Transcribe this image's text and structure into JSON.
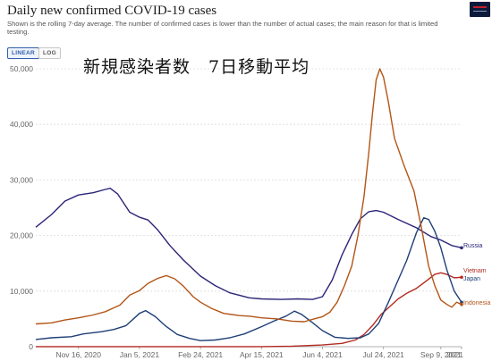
{
  "header": {
    "title": "Daily new confirmed COVID-19 cases",
    "subtitle": "Shown is the rolling 7-day average. The number of confirmed cases is lower than the number of actual cases; the main reason for that is limited testing."
  },
  "controls": {
    "linear_label": "LINEAR",
    "log_label": "LOG",
    "selected": "linear"
  },
  "overlay_text": "新規感染者数　7日移動平均",
  "colors": {
    "Russia": "#2b2477",
    "Vietnam": "#b22a21",
    "Japan": "#1f3f77",
    "Indonesia": "#b35516",
    "grid": "#dcdcdc",
    "axis": "#666666"
  },
  "chart_data": {
    "type": "line",
    "title": "Daily new confirmed COVID-19 cases",
    "xlabel": "",
    "ylabel": "",
    "ylim": [
      0,
      50000
    ],
    "yticks": [
      0,
      10000,
      20000,
      30000,
      40000,
      50000
    ],
    "ytick_labels": [
      "0",
      "10,000",
      "20,000",
      "30,000",
      "40,000",
      "50,000"
    ],
    "x_range": [
      "2020-10-12",
      "2021-09-26"
    ],
    "xticks": [
      "2020-11-16",
      "2021-01-05",
      "2021-02-24",
      "2021-04-15",
      "2021-06-04",
      "2021-07-24",
      "2021-09-09",
      "2021-09-26"
    ],
    "xtick_labels": [
      "Nov 16, 2020",
      "Jan 5, 2021",
      "Feb 24, 2021",
      "Apr 15, 2021",
      "Jun 4, 2021",
      "Jul 24, 2021",
      "Sep 9, 2021",
      "2021"
    ],
    "grid": true,
    "legend": "line-end labels, right",
    "series": [
      {
        "name": "Russia",
        "points": [
          [
            "2020-10-12",
            21500
          ],
          [
            "2020-10-25",
            23800
          ],
          [
            "2020-11-05",
            26200
          ],
          [
            "2020-11-16",
            27300
          ],
          [
            "2020-11-28",
            27700
          ],
          [
            "2020-12-08",
            28300
          ],
          [
            "2020-12-12",
            28500
          ],
          [
            "2020-12-18",
            27500
          ],
          [
            "2020-12-28",
            24200
          ],
          [
            "2021-01-05",
            23300
          ],
          [
            "2021-01-12",
            22800
          ],
          [
            "2021-01-20",
            21000
          ],
          [
            "2021-01-30",
            18200
          ],
          [
            "2021-02-10",
            15600
          ],
          [
            "2021-02-24",
            12700
          ],
          [
            "2021-03-08",
            11000
          ],
          [
            "2021-03-20",
            9700
          ],
          [
            "2021-04-05",
            8800
          ],
          [
            "2021-04-15",
            8600
          ],
          [
            "2021-05-01",
            8500
          ],
          [
            "2021-05-15",
            8600
          ],
          [
            "2021-05-27",
            8500
          ],
          [
            "2021-06-04",
            9000
          ],
          [
            "2021-06-12",
            12000
          ],
          [
            "2021-06-20",
            16500
          ],
          [
            "2021-06-28",
            20200
          ],
          [
            "2021-07-05",
            23000
          ],
          [
            "2021-07-12",
            24300
          ],
          [
            "2021-07-18",
            24500
          ],
          [
            "2021-07-24",
            24200
          ],
          [
            "2021-08-05",
            22900
          ],
          [
            "2021-08-20",
            21400
          ],
          [
            "2021-09-01",
            19800
          ],
          [
            "2021-09-09",
            19200
          ],
          [
            "2021-09-18",
            18200
          ],
          [
            "2021-09-26",
            17800
          ]
        ]
      },
      {
        "name": "Vietnam",
        "points": [
          [
            "2020-10-12",
            10
          ],
          [
            "2021-01-05",
            10
          ],
          [
            "2021-04-15",
            20
          ],
          [
            "2021-05-10",
            100
          ],
          [
            "2021-06-04",
            300
          ],
          [
            "2021-06-20",
            600
          ],
          [
            "2021-07-01",
            1200
          ],
          [
            "2021-07-08",
            2200
          ],
          [
            "2021-07-15",
            3800
          ],
          [
            "2021-07-22",
            5800
          ],
          [
            "2021-07-28",
            7000
          ],
          [
            "2021-08-05",
            8600
          ],
          [
            "2021-08-12",
            9600
          ],
          [
            "2021-08-20",
            10500
          ],
          [
            "2021-08-28",
            11800
          ],
          [
            "2021-09-04",
            13000
          ],
          [
            "2021-09-09",
            13300
          ],
          [
            "2021-09-14",
            13000
          ],
          [
            "2021-09-20",
            12400
          ],
          [
            "2021-09-26",
            12500
          ]
        ]
      },
      {
        "name": "Japan",
        "points": [
          [
            "2020-10-12",
            1300
          ],
          [
            "2020-10-25",
            1600
          ],
          [
            "2020-11-10",
            1800
          ],
          [
            "2020-11-20",
            2300
          ],
          [
            "2020-12-05",
            2700
          ],
          [
            "2020-12-15",
            3100
          ],
          [
            "2020-12-25",
            3800
          ],
          [
            "2021-01-01",
            5200
          ],
          [
            "2021-01-05",
            6000
          ],
          [
            "2021-01-10",
            6500
          ],
          [
            "2021-01-18",
            5400
          ],
          [
            "2021-01-26",
            3800
          ],
          [
            "2021-02-05",
            2200
          ],
          [
            "2021-02-15",
            1500
          ],
          [
            "2021-02-24",
            1100
          ],
          [
            "2021-03-08",
            1200
          ],
          [
            "2021-03-20",
            1600
          ],
          [
            "2021-04-01",
            2300
          ],
          [
            "2021-04-15",
            3600
          ],
          [
            "2021-04-25",
            4600
          ],
          [
            "2021-05-05",
            5500
          ],
          [
            "2021-05-12",
            6400
          ],
          [
            "2021-05-18",
            5800
          ],
          [
            "2021-05-27",
            4300
          ],
          [
            "2021-06-04",
            2900
          ],
          [
            "2021-06-14",
            1700
          ],
          [
            "2021-06-25",
            1500
          ],
          [
            "2021-07-05",
            1600
          ],
          [
            "2021-07-12",
            2300
          ],
          [
            "2021-07-20",
            4200
          ],
          [
            "2021-07-28",
            8000
          ],
          [
            "2021-08-05",
            12000
          ],
          [
            "2021-08-12",
            15500
          ],
          [
            "2021-08-20",
            20500
          ],
          [
            "2021-08-26",
            23200
          ],
          [
            "2021-08-30",
            22900
          ],
          [
            "2021-09-04",
            20800
          ],
          [
            "2021-09-09",
            17800
          ],
          [
            "2021-09-14",
            13800
          ],
          [
            "2021-09-20",
            10000
          ],
          [
            "2021-09-26",
            8000
          ]
        ]
      },
      {
        "name": "Indonesia",
        "points": [
          [
            "2020-10-12",
            4100
          ],
          [
            "2020-10-25",
            4300
          ],
          [
            "2020-11-05",
            4800
          ],
          [
            "2020-11-16",
            5200
          ],
          [
            "2020-11-28",
            5700
          ],
          [
            "2020-12-08",
            6300
          ],
          [
            "2020-12-20",
            7500
          ],
          [
            "2020-12-28",
            9300
          ],
          [
            "2021-01-05",
            10100
          ],
          [
            "2021-01-12",
            11400
          ],
          [
            "2021-01-20",
            12300
          ],
          [
            "2021-01-27",
            12800
          ],
          [
            "2021-02-03",
            12200
          ],
          [
            "2021-02-10",
            10900
          ],
          [
            "2021-02-18",
            9000
          ],
          [
            "2021-02-24",
            8000
          ],
          [
            "2021-03-05",
            6900
          ],
          [
            "2021-03-15",
            6000
          ],
          [
            "2021-03-28",
            5600
          ],
          [
            "2021-04-05",
            5500
          ],
          [
            "2021-04-15",
            5200
          ],
          [
            "2021-04-28",
            5000
          ],
          [
            "2021-05-10",
            4600
          ],
          [
            "2021-05-20",
            4500
          ],
          [
            "2021-05-28",
            5000
          ],
          [
            "2021-06-04",
            5400
          ],
          [
            "2021-06-10",
            6200
          ],
          [
            "2021-06-16",
            8000
          ],
          [
            "2021-06-22",
            11000
          ],
          [
            "2021-06-28",
            14500
          ],
          [
            "2021-07-03",
            20000
          ],
          [
            "2021-07-08",
            27000
          ],
          [
            "2021-07-12",
            35000
          ],
          [
            "2021-07-15",
            42000
          ],
          [
            "2021-07-18",
            48000
          ],
          [
            "2021-07-21",
            50000
          ],
          [
            "2021-07-24",
            48500
          ],
          [
            "2021-07-28",
            44000
          ],
          [
            "2021-08-02",
            37500
          ],
          [
            "2021-08-10",
            32500
          ],
          [
            "2021-08-18",
            28000
          ],
          [
            "2021-08-24",
            21500
          ],
          [
            "2021-08-30",
            14500
          ],
          [
            "2021-09-04",
            11000
          ],
          [
            "2021-09-09",
            8400
          ],
          [
            "2021-09-14",
            7600
          ],
          [
            "2021-09-18",
            7100
          ],
          [
            "2021-09-22",
            8000
          ],
          [
            "2021-09-26",
            7600
          ]
        ]
      }
    ]
  }
}
